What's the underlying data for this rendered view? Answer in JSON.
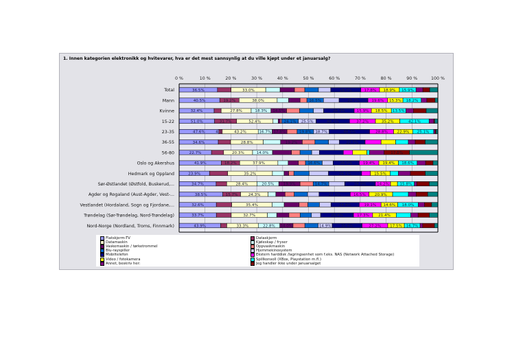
{
  "page": {
    "title": "1. Innen kategorien elektronikk og hvitevarer, hva er det mest sannsynlig at du ville kjøpt under et januarsalg?"
  },
  "chart_data": {
    "type": "bar",
    "orientation": "horizontal",
    "stacking": "percent",
    "title": "1. Innen kategorien elektronikk og hvitevarer, hva er det mest sannsynlig at du ville kjøpt under et januarsalg?",
    "xlabel": "",
    "ylabel": "",
    "xlim": [
      0,
      100
    ],
    "x_ticks": [
      "0 %",
      "10 %",
      "20 %",
      "30 %",
      "40 %",
      "50 %",
      "60 %",
      "70 %",
      "80 %",
      "90 %",
      "100 %"
    ],
    "grid": true,
    "legend_position": "bottom",
    "categories": [
      "Total",
      "Mann",
      "Kvinne",
      "15-22",
      "23-35",
      "36-55",
      "56-80",
      "Oslo og Akershus",
      "Hedmark og Oppland",
      "Sør-Østlandet (Østfold, Buskerud,...",
      "Agder og Rogaland (Aust-Agder, Vest-...",
      "Vestlandet (Hordaland, Sogn og Fjordane,...",
      "Trøndelag (Sør-Trøndelag, Nord-Trøndelag)",
      "Nord-Norge (Nordland, Troms, Finnmark)"
    ],
    "series": [
      {
        "name": "Flatskjerm-TV",
        "color": "#9999ff",
        "values": [
          36.5,
          40.5,
          32.4,
          51.0,
          47.6,
          34.6,
          22.7,
          41.9,
          23.9,
          34.7,
          38.5,
          32.6,
          33.7,
          43.9
        ],
        "labeled": [
          true,
          true,
          true,
          true,
          true,
          true,
          true,
          true,
          true,
          true,
          true,
          true,
          true,
          true
        ]
      },
      {
        "name": "Dataskjerm",
        "color": "#993366",
        "values": [
          13.0,
          19.2,
          6.5,
          31.7,
          4.1,
          10.9,
          8.5,
          18.2,
          14.3,
          9.9,
          15.7,
          13.5,
          13.5,
          6.5
        ],
        "labeled": [
          false,
          true,
          false,
          true,
          true,
          false,
          false,
          true,
          false,
          false,
          true,
          false,
          false,
          false
        ]
      },
      {
        "name": "Datamaskin",
        "color": "#ffffcc",
        "values": [
          33.0,
          38.0,
          27.8,
          52.4,
          43.2,
          28.8,
          20.3,
          37.9,
          35.2,
          28.4,
          24.3,
          35.4,
          32.7,
          33.3
        ],
        "labeled": [
          true,
          true,
          true,
          true,
          true,
          true,
          true,
          true,
          true,
          true,
          true,
          true,
          true,
          true
        ]
      },
      {
        "name": "Kjøleskap / fryser",
        "color": "#ccffff",
        "values": [
          13.7,
          11.4,
          18.3,
          7.5,
          16.7,
          15.3,
          14.0,
          10.2,
          9.2,
          20.5,
          6.8,
          10.6,
          8.5,
          22.8
        ],
        "labeled": [
          false,
          false,
          true,
          false,
          true,
          false,
          true,
          false,
          false,
          true,
          false,
          false,
          false,
          true
        ]
      },
      {
        "name": "Vaskemaskin / tørketrommel",
        "color": "#660066",
        "values": [
          13.7,
          11.4,
          14.5,
          2.9,
          17.8,
          19.2,
          13.3,
          10.2,
          3.6,
          19.9,
          8.1,
          13.1,
          11.0,
          14.0
        ],
        "labeled": [
          false,
          false,
          true,
          false,
          true,
          true,
          false,
          false,
          false,
          true,
          false,
          false,
          false,
          true
        ]
      },
      {
        "name": "Oppvaskmaskin",
        "color": "#ff8080",
        "values": [
          9.8,
          6.8,
          12.1,
          2.0,
          12.1,
          11.2,
          6.0,
          7.0,
          4.1,
          12.3,
          8.1,
          7.6,
          10.2,
          12.5
        ],
        "labeled": [
          false,
          false,
          false,
          false,
          false,
          false,
          false,
          false,
          false,
          false,
          false,
          false,
          false,
          false
        ]
      },
      {
        "name": "Blu-rayspiller",
        "color": "#0066cc",
        "values": [
          13.0,
          16.5,
          12.8,
          24.1,
          19.8,
          12.0,
          8.2,
          16.6,
          12.0,
          14.7,
          11.8,
          10.2,
          10.2,
          14.0
        ],
        "labeled": [
          false,
          true,
          false,
          true,
          true,
          false,
          false,
          true,
          false,
          true,
          false,
          false,
          false,
          false
        ]
      },
      {
        "name": "Hjemmekinosystem",
        "color": "#ccccff",
        "values": [
          11.7,
          15.6,
          9.4,
          25.5,
          18.7,
          9.6,
          5.4,
          10.8,
          15.2,
          14.9,
          10.1,
          10.1,
          8.3,
          14.9
        ],
        "labeled": [
          false,
          false,
          false,
          true,
          true,
          false,
          false,
          false,
          false,
          false,
          false,
          false,
          false,
          true
        ]
      },
      {
        "name": "Mobiltelefon",
        "color": "#000080",
        "values": [
          28.7,
          28.7,
          28.3,
          48.2,
          48.5,
          22.7,
          16.8,
          26.0,
          26.1,
          28.8,
          27.5,
          24.8,
          29.8,
          31.6
        ],
        "labeled": [
          true,
          true,
          true,
          true,
          true,
          true,
          false,
          true,
          true,
          true,
          true,
          true,
          true,
          true
        ]
      },
      {
        "name": "Ekstern harddisk /lagringsenhet som f.eks. NAS (Network Attached Storage)",
        "color": "#ff00ff",
        "values": [
          17.8,
          19.6,
          15.9,
          37.2,
          28.8,
          14.1,
          6.5,
          19.4,
          6.9,
          14.2,
          16.5,
          19.1,
          17.3,
          27.2
        ],
        "labeled": [
          true,
          true,
          true,
          true,
          true,
          false,
          false,
          true,
          false,
          true,
          true,
          true,
          true,
          true
        ]
      },
      {
        "name": "Video / fotokamera",
        "color": "#ffff00",
        "values": [
          18.9,
          15.3,
          18.5,
          35.2,
          22.9,
          12.9,
          10.0,
          19.4,
          15.5,
          6.5,
          20.9,
          14.6,
          21.4,
          17.5
        ],
        "labeled": [
          true,
          true,
          true,
          true,
          true,
          false,
          false,
          true,
          true,
          false,
          true,
          true,
          true,
          true
        ]
      },
      {
        "name": "Spillkonsoll (XBox, Playstation m.fl.)",
        "color": "#00ffff",
        "values": [
          15.9,
          18.2,
          13.5,
          42.1,
          25.1,
          11.2,
          1.8,
          18.6,
          6.5,
          15.8,
          13.9,
          18.0,
          13.2,
          16.7
        ],
        "labeled": [
          true,
          true,
          true,
          true,
          true,
          false,
          false,
          true,
          false,
          true,
          false,
          true,
          false,
          true
        ]
      },
      {
        "name": "Annet, beskriv her:",
        "color": "#800080",
        "values": [
          6.5,
          5.6,
          6.9,
          6.7,
          1.8,
          6.1,
          10.3,
          8.4,
          9.5,
          2.3,
          6.8,
          5.5,
          6.6,
          2.7
        ],
        "labeled": [
          false,
          false,
          false,
          false,
          false,
          false,
          false,
          false,
          false,
          false,
          false,
          false,
          false,
          false
        ]
      },
      {
        "name": "Jeg handler ikke under januarsalget",
        "color": "#800000",
        "values": [
          6.5,
          8.2,
          11.9,
          1.3,
          1.1,
          8.8,
          17.8,
          7.4,
          11.7,
          11.7,
          10.2,
          6.2,
          10.2,
          12.5
        ],
        "labeled": [
          false,
          false,
          false,
          false,
          false,
          false,
          true,
          false,
          false,
          false,
          false,
          false,
          false,
          false
        ]
      },
      {
        "name": "",
        "color": "#008080",
        "values": [
          7.8,
          2.8,
          10.8,
          4.6,
          2.2,
          11.2,
          19.9,
          4.8,
          9.9,
          8.1,
          9.0,
          5.5,
          7.7,
          3.6
        ],
        "labeled": [
          false,
          false,
          false,
          false,
          false,
          false,
          false,
          false,
          false,
          false,
          false,
          false,
          false,
          false
        ]
      }
    ]
  },
  "legend": {
    "items": [
      {
        "label": "Flatskjerm-TV",
        "color": "#9999ff"
      },
      {
        "label": "Dataskjerm",
        "color": "#993366"
      },
      {
        "label": "Datamaskin",
        "color": "#ffffcc"
      },
      {
        "label": "Kjøleskap / fryser",
        "color": "#ccffff"
      },
      {
        "label": "Vaskemaskin / tørketrommel",
        "color": "#660066"
      },
      {
        "label": "Oppvaskmaskin",
        "color": "#ff8080"
      },
      {
        "label": "Blu-rayspiller",
        "color": "#0066cc"
      },
      {
        "label": "Hjemmekinosystem",
        "color": "#ccccff"
      },
      {
        "label": "Mobiltelefon",
        "color": "#000080"
      },
      {
        "label": "Ekstern harddisk /lagringsenhet som f.eks. NAS (Network Attached Storage)",
        "color": "#ff00ff"
      },
      {
        "label": "Video / fotokamera",
        "color": "#ffff00"
      },
      {
        "label": "Spillkonsoll (XBox, Playstation m.fl.)",
        "color": "#00ffff"
      },
      {
        "label": "Annet, beskriv her:",
        "color": "#800080"
      },
      {
        "label": "Jeg handler ikke under januarsalget",
        "color": "#800000"
      }
    ]
  }
}
